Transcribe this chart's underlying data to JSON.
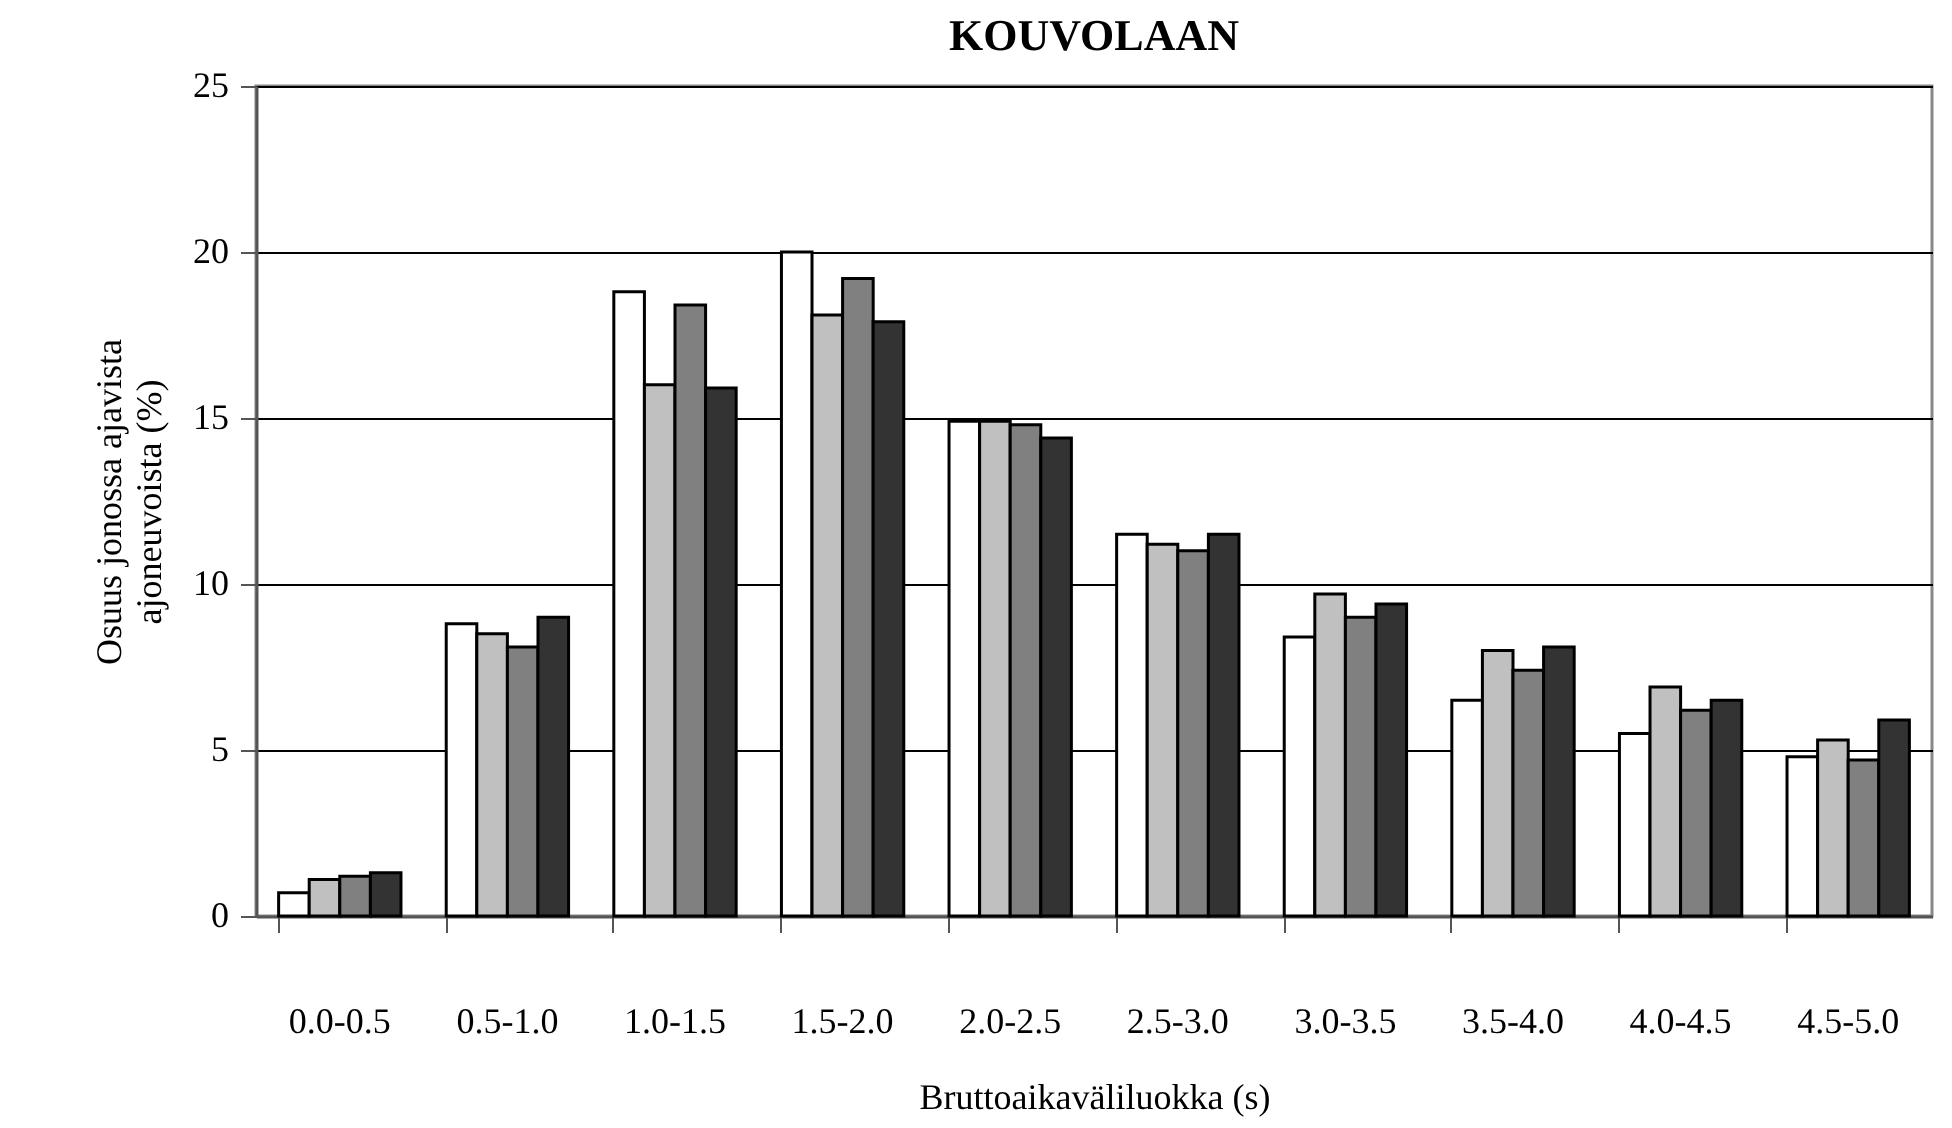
{
  "chart_data": {
    "type": "bar",
    "title": "KOUVOLAAN",
    "xlabel": "Bruttoaikaväliluokka (s)",
    "ylabel": "Osuus jonossa ajavista ajoneuvoista (%)",
    "categories": [
      "0.0-0.5",
      "0.5-1.0",
      "1.0-1.5",
      "1.5-2.0",
      "2.0-2.5",
      "2.5-3.0",
      "3.0-3.5",
      "3.5-4.0",
      "4.0-4.5",
      "4.5-5.0"
    ],
    "series": [
      {
        "color": "#ffffff",
        "values": [
          0.7,
          8.8,
          18.8,
          20.0,
          14.9,
          11.5,
          8.4,
          6.5,
          5.5,
          4.8
        ]
      },
      {
        "color": "#c0c0c0",
        "values": [
          1.1,
          8.5,
          16.0,
          18.1,
          14.9,
          11.2,
          9.7,
          8.0,
          6.9,
          5.3
        ]
      },
      {
        "color": "#808080",
        "values": [
          1.2,
          8.1,
          18.4,
          19.2,
          14.8,
          11.0,
          9.0,
          7.4,
          6.2,
          4.7
        ]
      },
      {
        "color": "#333333",
        "values": [
          1.3,
          9.0,
          15.9,
          17.9,
          14.4,
          11.5,
          9.4,
          8.1,
          6.5,
          5.9
        ]
      }
    ],
    "ylim": [
      0,
      25
    ],
    "yticks": [
      0,
      5,
      10,
      15,
      20,
      25
    ],
    "grid": "y"
  }
}
